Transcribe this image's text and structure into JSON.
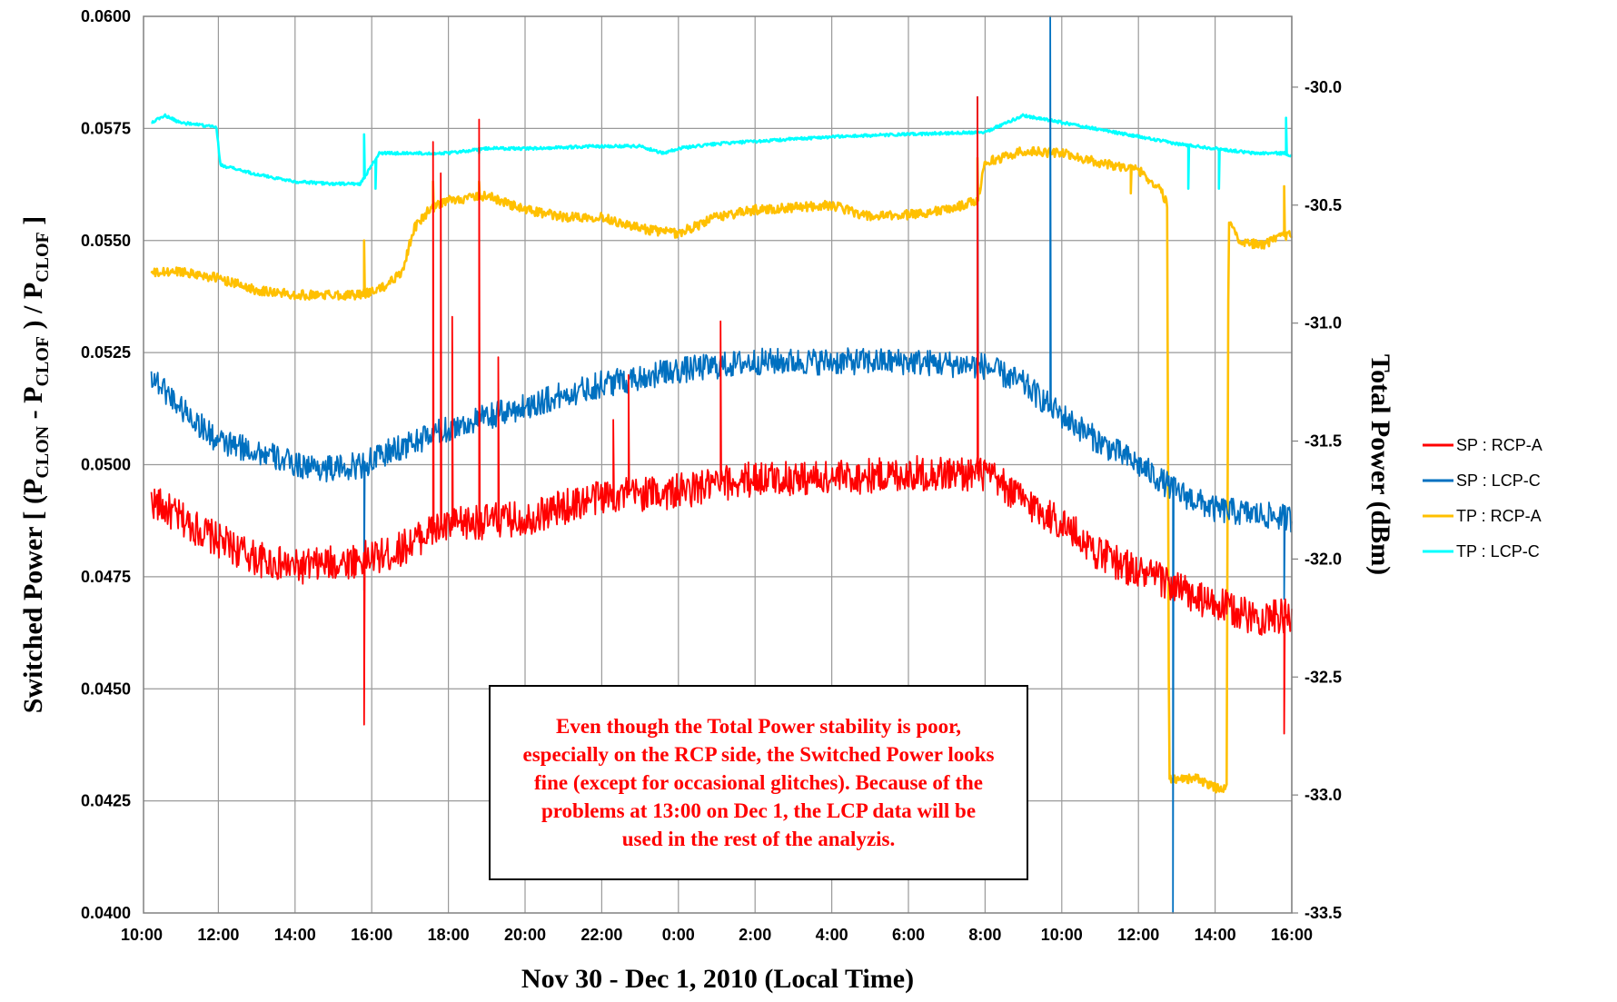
{
  "chart_data": {
    "type": "line",
    "xlabel": "Nov 30 - Dec 1, 2010 (Local Time)",
    "ylabel_left_parts": [
      "Switched Power [ (P",
      "CLON",
      " - P",
      "CLOF",
      " ) / P",
      "CLOF",
      " ]"
    ],
    "ylabel_right": "Total Power (dBm)",
    "x_range_hours": [
      10.25,
      40.0
    ],
    "x_ticks": [
      {
        "hours": 10,
        "label": "10:00"
      },
      {
        "hours": 12,
        "label": "12:00"
      },
      {
        "hours": 14,
        "label": "14:00"
      },
      {
        "hours": 16,
        "label": "16:00"
      },
      {
        "hours": 18,
        "label": "18:00"
      },
      {
        "hours": 20,
        "label": "20:00"
      },
      {
        "hours": 22,
        "label": "22:00"
      },
      {
        "hours": 24,
        "label": "0:00"
      },
      {
        "hours": 26,
        "label": "2:00"
      },
      {
        "hours": 28,
        "label": "4:00"
      },
      {
        "hours": 30,
        "label": "6:00"
      },
      {
        "hours": 32,
        "label": "8:00"
      },
      {
        "hours": 34,
        "label": "10:00"
      },
      {
        "hours": 36,
        "label": "12:00"
      },
      {
        "hours": 38,
        "label": "14:00"
      },
      {
        "hours": 40,
        "label": "16:00"
      }
    ],
    "y_left_range": [
      0.04,
      0.06
    ],
    "y_left_ticks": [
      "0.0400",
      "0.0425",
      "0.0450",
      "0.0475",
      "0.0500",
      "0.0525",
      "0.0550",
      "0.0575",
      "0.0600"
    ],
    "y_right_range": [
      -33.5,
      -29.7
    ],
    "y_right_ticks": [
      "-33.5",
      "-33.0",
      "-32.5",
      "-32.0",
      "-31.5",
      "-31.0",
      "-30.5",
      "-30.0"
    ],
    "grid": true,
    "legend_position": "right",
    "series": [
      {
        "name": "SP : RCP-A",
        "axis": "left",
        "color": "#ff0000",
        "noise": 0.0004,
        "points": [
          [
            10.25,
            0.0492
          ],
          [
            11.0,
            0.0488
          ],
          [
            12.0,
            0.0483
          ],
          [
            13.0,
            0.0479
          ],
          [
            14.0,
            0.0477
          ],
          [
            15.0,
            0.0478
          ],
          [
            15.8,
            0.0479
          ],
          [
            16.5,
            0.048
          ],
          [
            17.5,
            0.0485
          ],
          [
            18.5,
            0.0487
          ],
          [
            20.0,
            0.0488
          ],
          [
            22.0,
            0.0493
          ],
          [
            24.0,
            0.0494
          ],
          [
            26.0,
            0.0497
          ],
          [
            28.0,
            0.0497
          ],
          [
            30.0,
            0.0498
          ],
          [
            32.0,
            0.0498
          ],
          [
            33.0,
            0.0492
          ],
          [
            34.0,
            0.0487
          ],
          [
            35.0,
            0.048
          ],
          [
            36.0,
            0.0476
          ],
          [
            36.7,
            0.0474
          ],
          [
            37.5,
            0.047
          ],
          [
            38.3,
            0.0468
          ],
          [
            39.0,
            0.0466
          ],
          [
            40.0,
            0.0466
          ]
        ],
        "spikes": [
          [
            15.8,
            0.0442
          ],
          [
            17.6,
            0.0572
          ],
          [
            17.8,
            0.0565
          ],
          [
            18.1,
            0.0533
          ],
          [
            18.8,
            0.0577
          ],
          [
            19.3,
            0.0524
          ],
          [
            22.3,
            0.051
          ],
          [
            22.7,
            0.052
          ],
          [
            25.1,
            0.0532
          ],
          [
            31.8,
            0.0582
          ],
          [
            39.8,
            0.044
          ]
        ]
      },
      {
        "name": "SP : LCP-C",
        "axis": "left",
        "color": "#0070c0",
        "noise": 0.0003,
        "points": [
          [
            10.25,
            0.052
          ],
          [
            11.0,
            0.0513
          ],
          [
            12.0,
            0.0505
          ],
          [
            13.0,
            0.0503
          ],
          [
            14.0,
            0.05
          ],
          [
            15.0,
            0.0499
          ],
          [
            15.8,
            0.05
          ],
          [
            16.5,
            0.0503
          ],
          [
            18.0,
            0.0508
          ],
          [
            20.0,
            0.0513
          ],
          [
            22.0,
            0.0518
          ],
          [
            24.0,
            0.0521
          ],
          [
            26.0,
            0.0523
          ],
          [
            28.0,
            0.0523
          ],
          [
            30.0,
            0.0523
          ],
          [
            32.0,
            0.0522
          ],
          [
            33.0,
            0.0518
          ],
          [
            34.0,
            0.0511
          ],
          [
            35.0,
            0.0505
          ],
          [
            36.0,
            0.05
          ],
          [
            37.0,
            0.0494
          ],
          [
            38.0,
            0.049
          ],
          [
            39.0,
            0.0489
          ],
          [
            40.0,
            0.0488
          ]
        ],
        "spikes": [
          [
            15.8,
            0.0472
          ],
          [
            31.8,
            0.0582
          ],
          [
            33.7,
            0.06
          ],
          [
            36.9,
            0.04
          ],
          [
            39.8,
            0.047
          ]
        ]
      },
      {
        "name": "TP : RCP-A",
        "axis": "right",
        "color": "#ffc000",
        "noise": 0.02,
        "points": [
          [
            10.25,
            -30.79
          ],
          [
            11.0,
            -30.78
          ],
          [
            12.0,
            -30.81
          ],
          [
            13.0,
            -30.86
          ],
          [
            14.0,
            -30.88
          ],
          [
            15.7,
            -30.88
          ],
          [
            16.3,
            -30.85
          ],
          [
            16.8,
            -30.78
          ],
          [
            17.1,
            -30.6
          ],
          [
            17.5,
            -30.52
          ],
          [
            18.0,
            -30.48
          ],
          [
            19.0,
            -30.46
          ],
          [
            20.0,
            -30.52
          ],
          [
            21.0,
            -30.55
          ],
          [
            22.0,
            -30.55
          ],
          [
            23.0,
            -30.6
          ],
          [
            24.0,
            -30.62
          ],
          [
            25.0,
            -30.55
          ],
          [
            26.0,
            -30.52
          ],
          [
            28.0,
            -30.5
          ],
          [
            29.0,
            -30.55
          ],
          [
            30.0,
            -30.54
          ],
          [
            31.0,
            -30.52
          ],
          [
            31.8,
            -30.48
          ],
          [
            32.0,
            -30.32
          ],
          [
            33.0,
            -30.27
          ],
          [
            34.0,
            -30.28
          ],
          [
            35.0,
            -30.32
          ],
          [
            36.0,
            -30.35
          ],
          [
            36.6,
            -30.44
          ],
          [
            36.75,
            -30.5
          ],
          [
            36.8,
            -32.93
          ],
          [
            37.5,
            -32.93
          ],
          [
            38.0,
            -32.97
          ],
          [
            38.3,
            -32.97
          ],
          [
            38.35,
            -30.55
          ],
          [
            38.6,
            -30.65
          ],
          [
            39.2,
            -30.67
          ],
          [
            39.8,
            -30.63
          ],
          [
            40.0,
            -30.62
          ]
        ],
        "spikes": [
          [
            15.8,
            -30.65
          ],
          [
            17.6,
            -30.4
          ],
          [
            18.8,
            -30.4
          ],
          [
            31.8,
            -30.3
          ],
          [
            35.8,
            -30.45
          ],
          [
            39.8,
            -30.42
          ]
        ]
      },
      {
        "name": "TP : LCP-C",
        "axis": "right",
        "color": "#00ffff",
        "noise": 0.006,
        "points": [
          [
            10.25,
            -30.15
          ],
          [
            10.6,
            -30.12
          ],
          [
            11.0,
            -30.15
          ],
          [
            11.95,
            -30.17
          ],
          [
            12.05,
            -30.33
          ],
          [
            13.0,
            -30.37
          ],
          [
            14.0,
            -30.4
          ],
          [
            15.0,
            -30.41
          ],
          [
            15.7,
            -30.41
          ],
          [
            16.2,
            -30.28
          ],
          [
            17.0,
            -30.28
          ],
          [
            18.0,
            -30.28
          ],
          [
            19.0,
            -30.26
          ],
          [
            20.0,
            -30.26
          ],
          [
            22.0,
            -30.25
          ],
          [
            23.0,
            -30.25
          ],
          [
            23.6,
            -30.28
          ],
          [
            24.0,
            -30.26
          ],
          [
            25.0,
            -30.24
          ],
          [
            26.0,
            -30.23
          ],
          [
            28.0,
            -30.21
          ],
          [
            30.0,
            -30.2
          ],
          [
            32.0,
            -30.19
          ],
          [
            33.0,
            -30.12
          ],
          [
            34.0,
            -30.15
          ],
          [
            35.0,
            -30.18
          ],
          [
            36.0,
            -30.21
          ],
          [
            37.0,
            -30.24
          ],
          [
            38.0,
            -30.26
          ],
          [
            39.0,
            -30.28
          ],
          [
            39.8,
            -30.28
          ],
          [
            40.0,
            -30.29
          ]
        ],
        "spikes": [
          [
            15.8,
            -30.2
          ],
          [
            16.1,
            -30.43
          ],
          [
            18.8,
            -30.28
          ],
          [
            37.3,
            -30.43
          ],
          [
            38.1,
            -30.43
          ],
          [
            39.85,
            -30.13
          ]
        ]
      }
    ],
    "annotation": "Even though the Total Power stability is poor, especially on the RCP side, the Switched Power looks fine (except for occasional glitches). Because of the problems at 13:00 on Dec 1, the LCP data will be used in the rest of the analyzis."
  }
}
